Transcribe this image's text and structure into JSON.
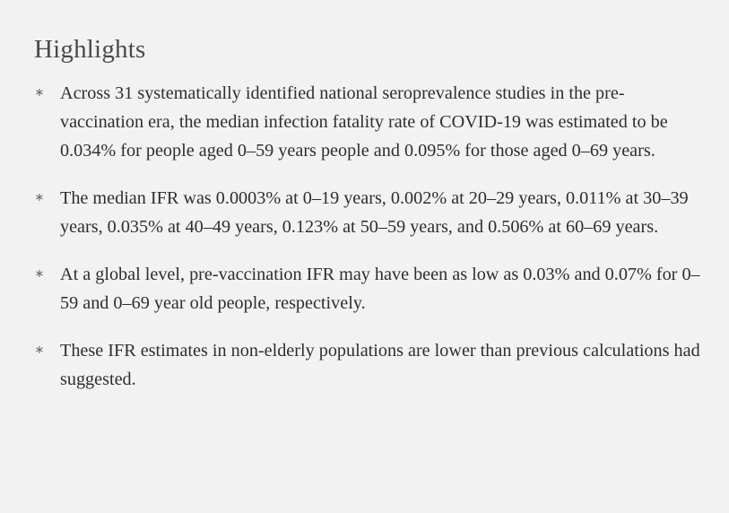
{
  "heading": "Highlights",
  "bullet_glyph": "∗",
  "highlights": [
    "Across 31 systematically identified national seroprevalence studies in the pre-vaccination era, the median infection fatality rate of COVID-19 was estimated to be 0.034% for people aged 0–59 years people and 0.095% for those aged 0–69 years.",
    "The median IFR was 0.0003% at 0–19 years, 0.002% at 20–29 years, 0.011% at 30–39 years, 0.035% at 40–49 years, 0.123% at 50–59 years, and 0.506% at 60–69 years.",
    "At a global level, pre-vaccination IFR may have been as low as 0.03% and 0.07% for 0–59 and 0–69 year old people, respectively.",
    "These IFR estimates in non-elderly populations are lower than previous calculations had suggested."
  ]
}
